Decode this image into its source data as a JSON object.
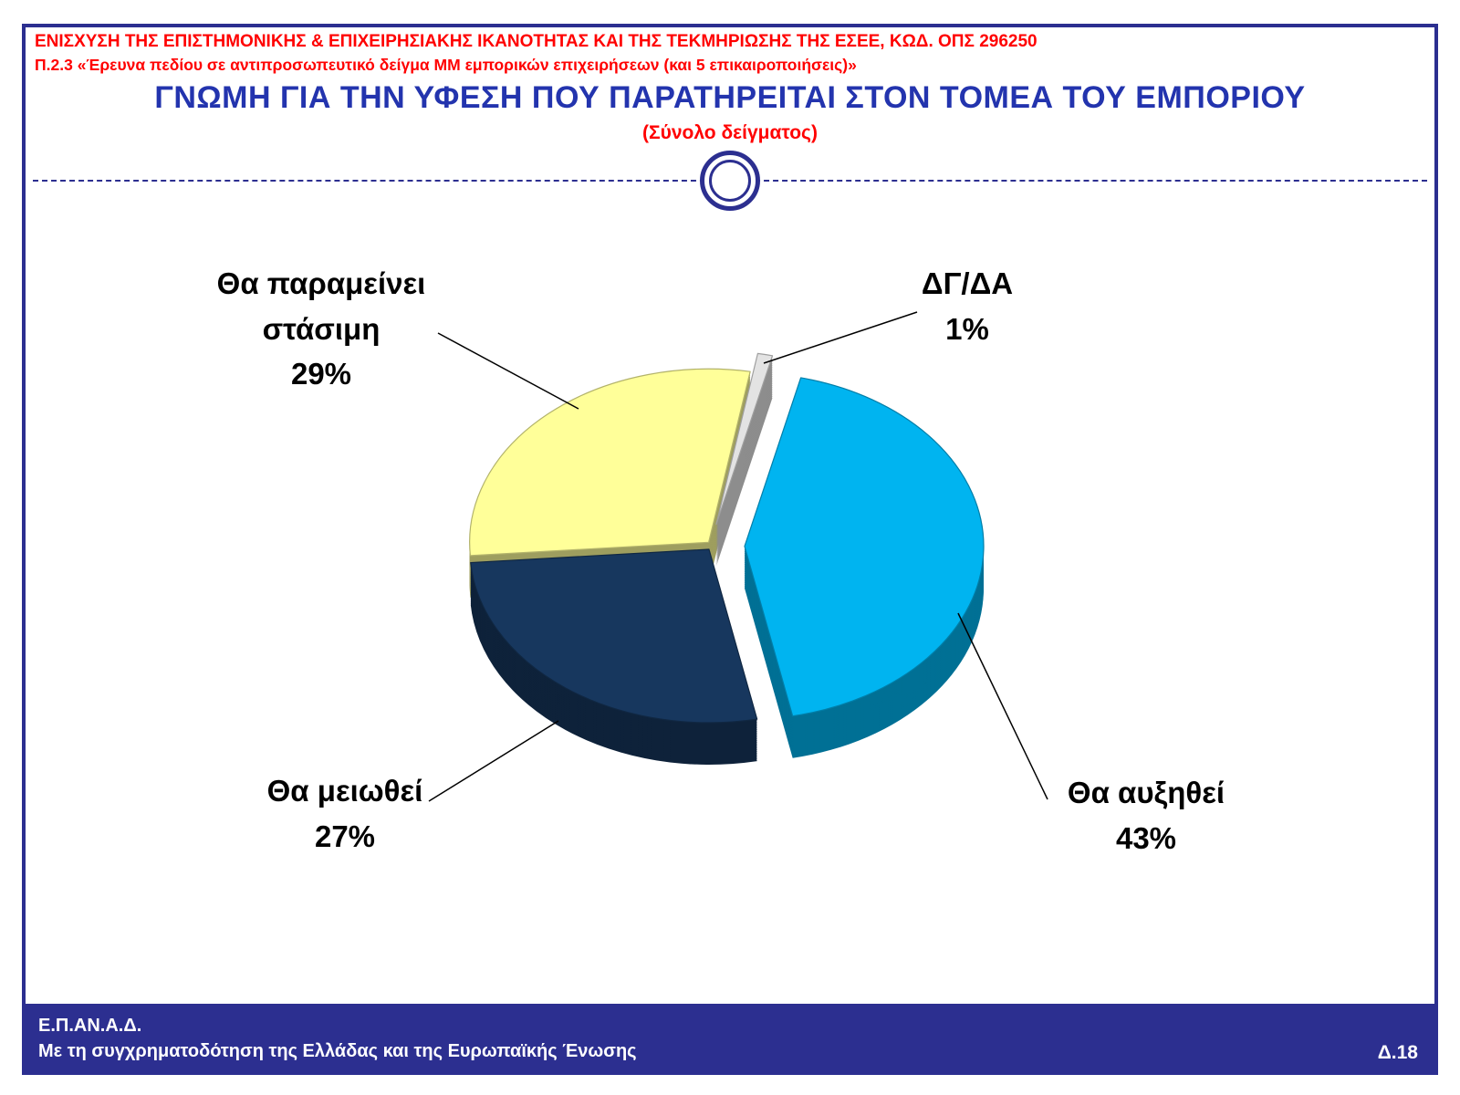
{
  "header": {
    "line1": "ΕΝΙΣΧΥΣΗ ΤΗΣ ΕΠΙΣΤΗΜΟΝΙΚΗΣ & ΕΠΙΧΕΙΡΗΣΙΑΚΗΣ ΙΚΑΝΟΤΗΤΑΣ ΚΑΙ ΤΗΣ ΤΕΚΜΗΡΙΩΣΗΣ ΤΗΣ ΕΣΕΕ, ΚΩΔ. ΟΠΣ 296250",
    "line2": "Π.2.3 «Έρευνα πεδίου σε αντιπροσωπευτικό δείγμα ΜΜ εμπορικών επιχειρήσεων (και 5 επικαιροποιήσεις)»"
  },
  "title": "ΓΝΩΜΗ ΓΙΑ ΤΗΝ ΥΦΕΣΗ ΠΟΥ ΠΑΡΑΤΗΡΕΙΤΑΙ ΣΤΟΝ ΤΟΜΕΑ ΤΟΥ ΕΜΠΟΡΙΟΥ",
  "subtitle": "(Σύνολο δείγματος)",
  "footer": {
    "line1": "Ε.Π.ΑΝ.Α.Δ.",
    "line2": "Με τη συγχρηματοδότηση της Ελλάδας και της Ευρωπαϊκής Ένωσης",
    "page": "Δ.18"
  },
  "colors": {
    "border_blue": "#2C2F90",
    "title_blue": "#2334AE",
    "header_red": "#FF0000",
    "footer_bg": "#2C2F90"
  },
  "chart_data": {
    "type": "pie",
    "style": "3d-exploded",
    "title": "ΓΝΩΜΗ ΓΙΑ ΤΗΝ ΥΦΕΣΗ ΠΟΥ ΠΑΡΑΤΗΡΕΙΤΑΙ ΣΤΟΝ ΤΟΜΕΑ ΤΟΥ ΕΜΠΟΡΙΟΥ",
    "subtitle": "(Σύνολο δείγματος)",
    "unit": "%",
    "start_angle_deg": -80,
    "direction": "clockwise",
    "has_legend": false,
    "labels_position": "callouts-outside",
    "slices": [
      {
        "label": "ΔΓ/ΔΑ",
        "value": 1,
        "display": "1%",
        "color": "#E3E3E3",
        "explode": 24
      },
      {
        "label": "Θα αυξηθεί",
        "value": 43,
        "display": "43%",
        "color": "#00B4F0",
        "explode": 36
      },
      {
        "label": "Θα μειωθεί",
        "value": 27,
        "display": "27%",
        "color": "#17375E",
        "explode": 5
      },
      {
        "label": "Θα παραμείνει στάσιμη",
        "value": 29,
        "display": "29%",
        "color": "#FFFF99",
        "explode": 5
      }
    ]
  }
}
